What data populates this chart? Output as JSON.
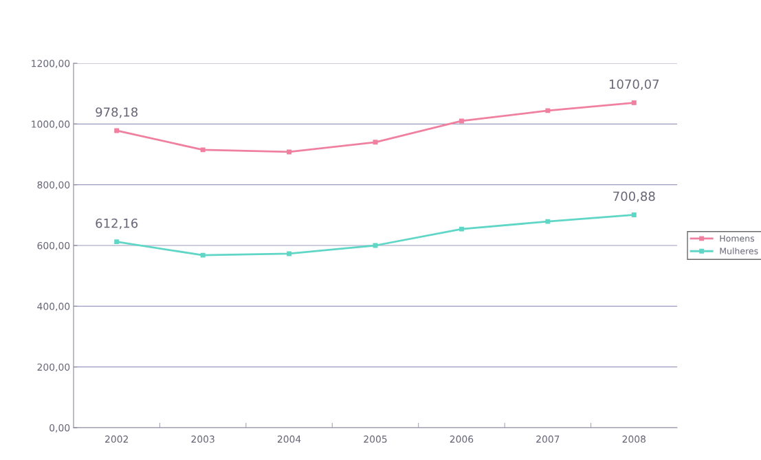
{
  "chart_data": {
    "type": "line",
    "categories": [
      "2002",
      "2003",
      "2004",
      "2005",
      "2006",
      "2007",
      "2008"
    ],
    "series": [
      {
        "name": "Homens",
        "color": "#f0809f",
        "values": [
          978.18,
          915,
          908,
          940,
          1010,
          1044,
          1070.07
        ],
        "value_labels": [
          "978,18",
          null,
          null,
          null,
          null,
          null,
          "1070,07"
        ]
      },
      {
        "name": "Mulheres",
        "color": "#5fd6c6",
        "values": [
          612.16,
          568,
          573,
          600,
          654,
          679,
          700.88
        ],
        "value_labels": [
          "612,16",
          null,
          null,
          null,
          null,
          null,
          "700,88"
        ]
      }
    ],
    "ylim": [
      0,
      1200
    ],
    "yticks": [
      {
        "value": 0,
        "label": "0,00"
      },
      {
        "value": 200,
        "label": "200,00"
      },
      {
        "value": 400,
        "label": "400,00"
      },
      {
        "value": 600,
        "label": "600,00"
      },
      {
        "value": 800,
        "label": "800,00"
      },
      {
        "value": 1000,
        "label": "1000,00"
      },
      {
        "value": 1200,
        "label": "1200,00"
      }
    ],
    "grid": "y",
    "legend": "right",
    "marker": "square",
    "line_style": "solid"
  }
}
